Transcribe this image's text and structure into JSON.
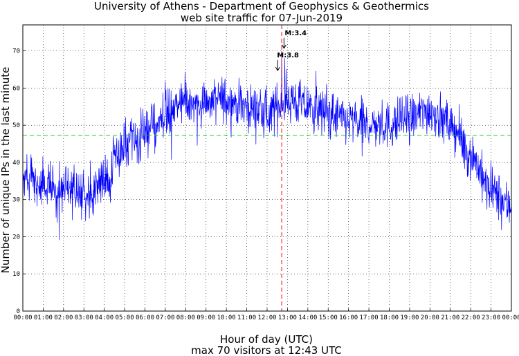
{
  "chart_data": {
    "type": "line",
    "title": "University of Athens - Department of Geophysics & Geothermics",
    "subtitle": "web site traffic for 07-Jun-2019",
    "xlabel": "Hour of day (UTC)",
    "ylabel": "Number of unique IPs in the last minute",
    "footer": "max 70 visitors at 12:43 UTC",
    "xlim": [
      0,
      24
    ],
    "ylim": [
      0,
      77
    ],
    "x_tick_labels": [
      "00:00",
      "01:00",
      "02:00",
      "03:00",
      "04:00",
      "05:00",
      "06:00",
      "07:00",
      "08:00",
      "09:00",
      "10:00",
      "11:00",
      "12:00",
      "13:00",
      "14:00",
      "15:00",
      "16:00",
      "17:00",
      "18:00",
      "19:00",
      "20:00",
      "21:00",
      "22:00",
      "23:00",
      "00:00"
    ],
    "y_ticks": [
      0,
      10,
      20,
      30,
      40,
      50,
      60,
      70
    ],
    "grid": true,
    "series_color": "#0000ff",
    "mean_line": {
      "value": 47.3,
      "color": "#00cc00"
    },
    "max_marker": {
      "hour": 12.717,
      "color": "#ff0000"
    },
    "annotations": [
      {
        "text": "M:3.8",
        "hour": 12.52,
        "value": 67.5
      },
      {
        "text": "M:3.4",
        "hour": 12.83,
        "value": 73.5
      }
    ],
    "hourly_profile": [
      {
        "hour": 0.0,
        "value": 36
      },
      {
        "hour": 1.0,
        "value": 34
      },
      {
        "hour": 2.0,
        "value": 33
      },
      {
        "hour": 3.0,
        "value": 32
      },
      {
        "hour": 4.0,
        "value": 35
      },
      {
        "hour": 5.0,
        "value": 44
      },
      {
        "hour": 6.0,
        "value": 47
      },
      {
        "hour": 7.0,
        "value": 53
      },
      {
        "hour": 8.0,
        "value": 56
      },
      {
        "hour": 9.0,
        "value": 56
      },
      {
        "hour": 10.0,
        "value": 57
      },
      {
        "hour": 11.0,
        "value": 55
      },
      {
        "hour": 12.0,
        "value": 53
      },
      {
        "hour": 13.0,
        "value": 57
      },
      {
        "hour": 14.0,
        "value": 55
      },
      {
        "hour": 15.0,
        "value": 53
      },
      {
        "hour": 16.0,
        "value": 51
      },
      {
        "hour": 17.0,
        "value": 50
      },
      {
        "hour": 18.0,
        "value": 50
      },
      {
        "hour": 19.0,
        "value": 52
      },
      {
        "hour": 20.0,
        "value": 54
      },
      {
        "hour": 21.0,
        "value": 50
      },
      {
        "hour": 22.0,
        "value": 42
      },
      {
        "hour": 23.0,
        "value": 32
      },
      {
        "hour": 24.0,
        "value": 28
      }
    ]
  }
}
